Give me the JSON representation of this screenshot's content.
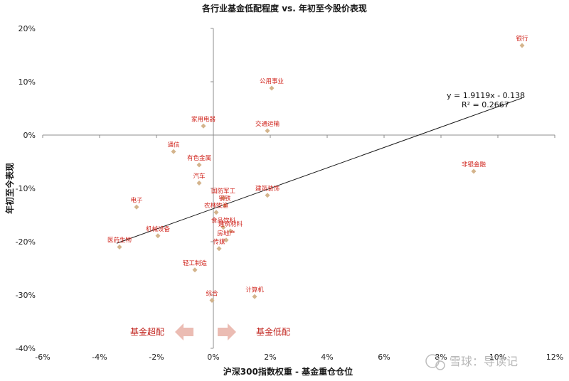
{
  "chart_data": {
    "type": "scatter",
    "title": "各行业基金低配程度 vs. 年初至今股价表现",
    "xlabel": "沪深300指数权重 - 基金重仓仓位",
    "ylabel": "年初至今表现",
    "xlim": [
      -0.06,
      0.12
    ],
    "ylim": [
      -0.4,
      0.2
    ],
    "x_ticks": [
      "-6%",
      "-4%",
      "-2%",
      "0%",
      "2%",
      "4%",
      "6%",
      "8%",
      "10%",
      "12%"
    ],
    "y_ticks": [
      "20%",
      "10%",
      "0%",
      "-10%",
      "-20%",
      "-30%",
      "-40%"
    ],
    "point_color": "#d4b48c",
    "label_color": "#d0241c",
    "points": [
      {
        "label": "银行",
        "x": 0.1085,
        "y": 0.168
      },
      {
        "label": "公用事业",
        "x": 0.0205,
        "y": 0.088
      },
      {
        "label": "家用电器",
        "x": -0.0035,
        "y": 0.017
      },
      {
        "label": "交通运输",
        "x": 0.019,
        "y": 0.008
      },
      {
        "label": "通信",
        "x": -0.014,
        "y": -0.031
      },
      {
        "label": "有色金属",
        "x": -0.005,
        "y": -0.056
      },
      {
        "label": "非银金融",
        "x": 0.0915,
        "y": -0.068
      },
      {
        "label": "汽车",
        "x": -0.005,
        "y": -0.09
      },
      {
        "label": "建筑装饰",
        "x": 0.019,
        "y": -0.113
      },
      {
        "label": "国防军工",
        "x": 0.0035,
        "y": -0.118
      },
      {
        "label": "钢铁",
        "x": 0.004,
        "y": -0.132
      },
      {
        "label": "电子",
        "x": -0.027,
        "y": -0.135
      },
      {
        "label": "农林牧渔",
        "x": 0.001,
        "y": -0.145
      },
      {
        "label": "食品饮料",
        "x": 0.0035,
        "y": -0.173
      },
      {
        "label": "建筑材料",
        "x": 0.006,
        "y": -0.18
      },
      {
        "label": "机械设备",
        "x": -0.0195,
        "y": -0.189
      },
      {
        "label": "房地产",
        "x": 0.0045,
        "y": -0.197
      },
      {
        "label": "医药生物",
        "x": -0.033,
        "y": -0.21
      },
      {
        "label": "传媒",
        "x": 0.002,
        "y": -0.213
      },
      {
        "label": "轻工制造",
        "x": -0.0065,
        "y": -0.253
      },
      {
        "label": "计算机",
        "x": 0.0145,
        "y": -0.303
      },
      {
        "label": "综合",
        "x": -0.0005,
        "y": -0.31
      }
    ],
    "trendline": {
      "x": [
        -0.034,
        0.1085
      ],
      "y": [
        -0.203,
        0.0694
      ],
      "equation": "y = 1.9119x - 0.138",
      "r2": "R² = 0.2667"
    },
    "annotations": {
      "left": "基金超配",
      "right": "基金低配"
    }
  },
  "watermark": "雪球：导读记"
}
